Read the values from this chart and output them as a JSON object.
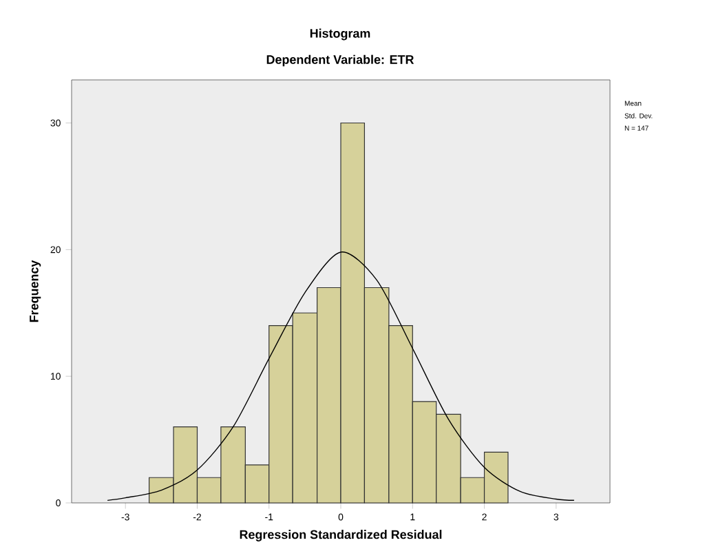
{
  "chart_data": {
    "type": "histogram",
    "title": "Histogram",
    "subtitle": "Dependent Variable: ETR",
    "xlabel": "Regression Standardized Residual",
    "ylabel": "Frequency",
    "bins": [
      -2.67,
      -2.33,
      -2,
      -1.67,
      -1.33,
      -1,
      -0.67,
      -0.33,
      0,
      0.33,
      0.67,
      1,
      1.33,
      1.67,
      2,
      2.33
    ],
    "values": [
      2,
      6,
      2,
      6,
      3,
      14,
      15,
      17,
      30,
      17,
      14,
      8,
      7,
      2,
      4
    ],
    "color": "#d6d19a",
    "series": [
      {
        "type": "line",
        "color": "#000000",
        "x": [
          -3.25,
          -3,
          -2.5,
          -2,
          -1.5,
          -1,
          -0.5,
          0,
          0.5,
          1,
          1.5,
          2,
          2.5,
          3,
          3.25
        ],
        "values": [
          0.2,
          0.4,
          1.0,
          2.6,
          6.0,
          11.4,
          16.6,
          19.8,
          17.6,
          12.2,
          6.6,
          2.8,
          0.9,
          0.3,
          0.2
        ]
      }
    ],
    "xlim": [
      -3.75,
      3.75
    ],
    "ylim": [
      0,
      33.4
    ],
    "xticks": [
      -3,
      -2,
      -1,
      0,
      1,
      2,
      3
    ],
    "yticks": [
      0,
      10,
      20,
      30
    ],
    "grid": false,
    "annotations": [
      "Mean",
      "Std. Dev.",
      "N = 147"
    ]
  }
}
